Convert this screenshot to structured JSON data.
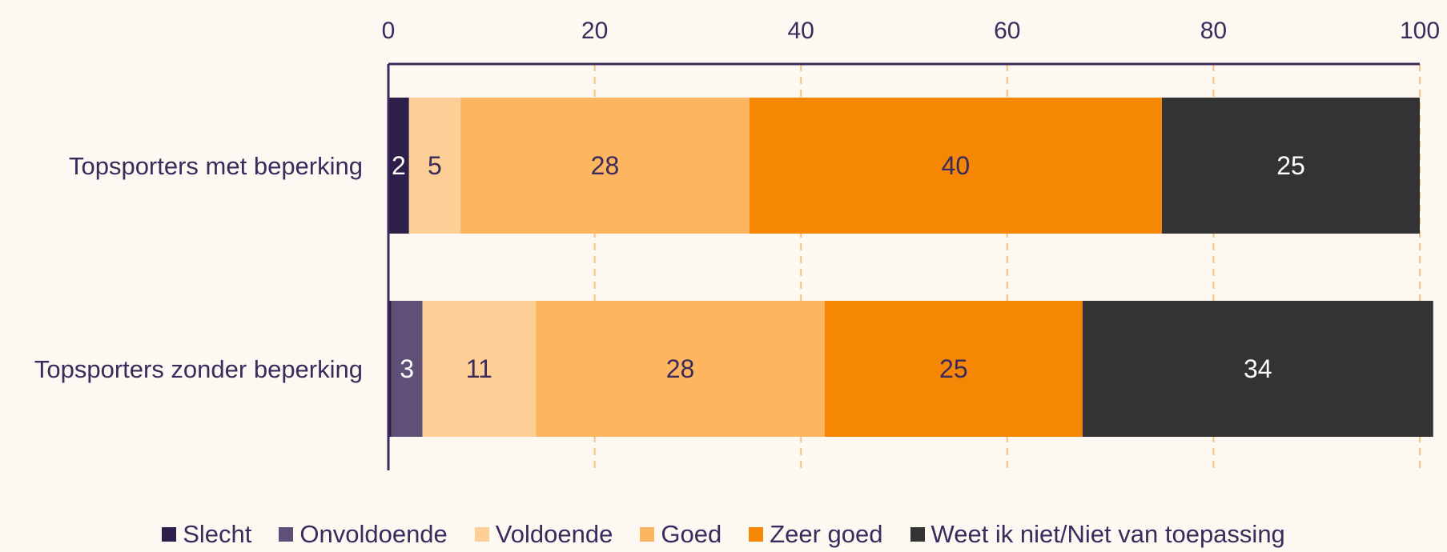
{
  "chart_data": {
    "type": "bar",
    "orientation": "horizontal",
    "stacked": true,
    "categories": [
      "Topsporters met beperking",
      "Topsporters zonder beperking"
    ],
    "series": [
      {
        "name": "Slecht",
        "color": "#2e1f4a",
        "values": [
          2,
          0.3
        ],
        "labels": [
          "2",
          ""
        ]
      },
      {
        "name": "Onvoldoende",
        "color": "#5f5077",
        "values": [
          0,
          3
        ],
        "labels": [
          "",
          "3"
        ]
      },
      {
        "name": "Voldoende",
        "color": "#fdcf96",
        "values": [
          5,
          11
        ],
        "labels": [
          "5",
          "11"
        ]
      },
      {
        "name": "Goed",
        "color": "#fdb65f",
        "values": [
          28,
          28
        ],
        "labels": [
          "28",
          "28"
        ]
      },
      {
        "name": "Zeer goed",
        "color": "#f68705",
        "values": [
          40,
          25
        ],
        "labels": [
          "40",
          "25"
        ]
      },
      {
        "name": "Weet ik niet/Niet van toepassing",
        "color": "#333333",
        "values": [
          25,
          34
        ],
        "labels": [
          "25",
          "34"
        ]
      }
    ],
    "xlim": [
      0,
      100
    ],
    "xticks": [
      "0",
      "20",
      "40",
      "60",
      "80",
      "100"
    ],
    "xaxis_position": "top",
    "grid": true,
    "legend_position": "bottom",
    "label_colors": {
      "dark": "#3b2a5c",
      "light": "#ffffff"
    }
  }
}
